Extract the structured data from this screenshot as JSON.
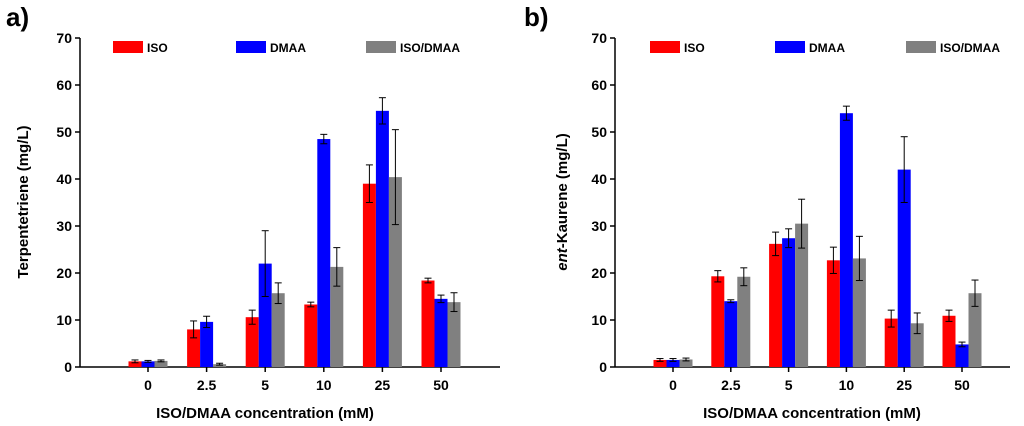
{
  "chart_data": [
    {
      "type": "bar",
      "panel": "a)",
      "title": "",
      "xlabel": "ISO/DMAA concentration (mM)",
      "ylabel": "Terpentetriene (mg/L)",
      "ylabel_italic_prefix": "",
      "ylabel_rest": "Terpentetriene (mg/L)",
      "ylim": [
        0,
        70
      ],
      "yticks": [
        "0",
        "10",
        "20",
        "30",
        "40",
        "50",
        "60",
        "70"
      ],
      "categories": [
        "0",
        "2.5",
        "5",
        "10",
        "25",
        "50"
      ],
      "legend_position": "top",
      "series": [
        {
          "name": "ISO",
          "color": "#ff0000",
          "values": [
            1.2,
            8.0,
            10.6,
            13.3,
            39.0,
            18.4
          ],
          "errors": [
            0.3,
            1.8,
            1.5,
            0.5,
            4.0,
            0.5
          ]
        },
        {
          "name": "DMAA",
          "color": "#0000ff",
          "values": [
            1.2,
            9.6,
            22.0,
            48.5,
            54.5,
            14.5
          ],
          "errors": [
            0.2,
            1.2,
            7.0,
            1.0,
            2.8,
            0.8
          ]
        },
        {
          "name": "ISO/DMAA",
          "color": "#808080",
          "values": [
            1.3,
            0.6,
            15.7,
            21.3,
            40.4,
            13.8
          ],
          "errors": [
            0.2,
            0.2,
            2.2,
            4.1,
            10.1,
            2.0
          ]
        }
      ]
    },
    {
      "type": "bar",
      "panel": "b)",
      "title": "",
      "xlabel": "ISO/DMAA concentration (mM)",
      "ylabel": "ent-Kaurene (mg/L)",
      "ylabel_italic_prefix": "ent",
      "ylabel_rest": "-Kaurene (mg/L)",
      "ylim": [
        0,
        70
      ],
      "yticks": [
        "0",
        "10",
        "20",
        "30",
        "40",
        "50",
        "60",
        "70"
      ],
      "categories": [
        "0",
        "2.5",
        "5",
        "10",
        "25",
        "50"
      ],
      "legend_position": "top",
      "series": [
        {
          "name": "ISO",
          "color": "#ff0000",
          "values": [
            1.5,
            19.3,
            26.2,
            22.7,
            10.3,
            10.9
          ],
          "errors": [
            0.3,
            1.2,
            2.5,
            2.8,
            1.8,
            1.2
          ]
        },
        {
          "name": "DMAA",
          "color": "#0000ff",
          "values": [
            1.5,
            14.0,
            27.4,
            54.0,
            42.0,
            4.8
          ],
          "errors": [
            0.3,
            0.3,
            2.0,
            1.5,
            7.0,
            0.5
          ]
        },
        {
          "name": "ISO/DMAA",
          "color": "#808080",
          "values": [
            1.6,
            19.2,
            30.5,
            23.1,
            9.3,
            15.7
          ],
          "errors": [
            0.3,
            1.9,
            5.2,
            4.7,
            2.2,
            2.8
          ]
        }
      ]
    }
  ]
}
